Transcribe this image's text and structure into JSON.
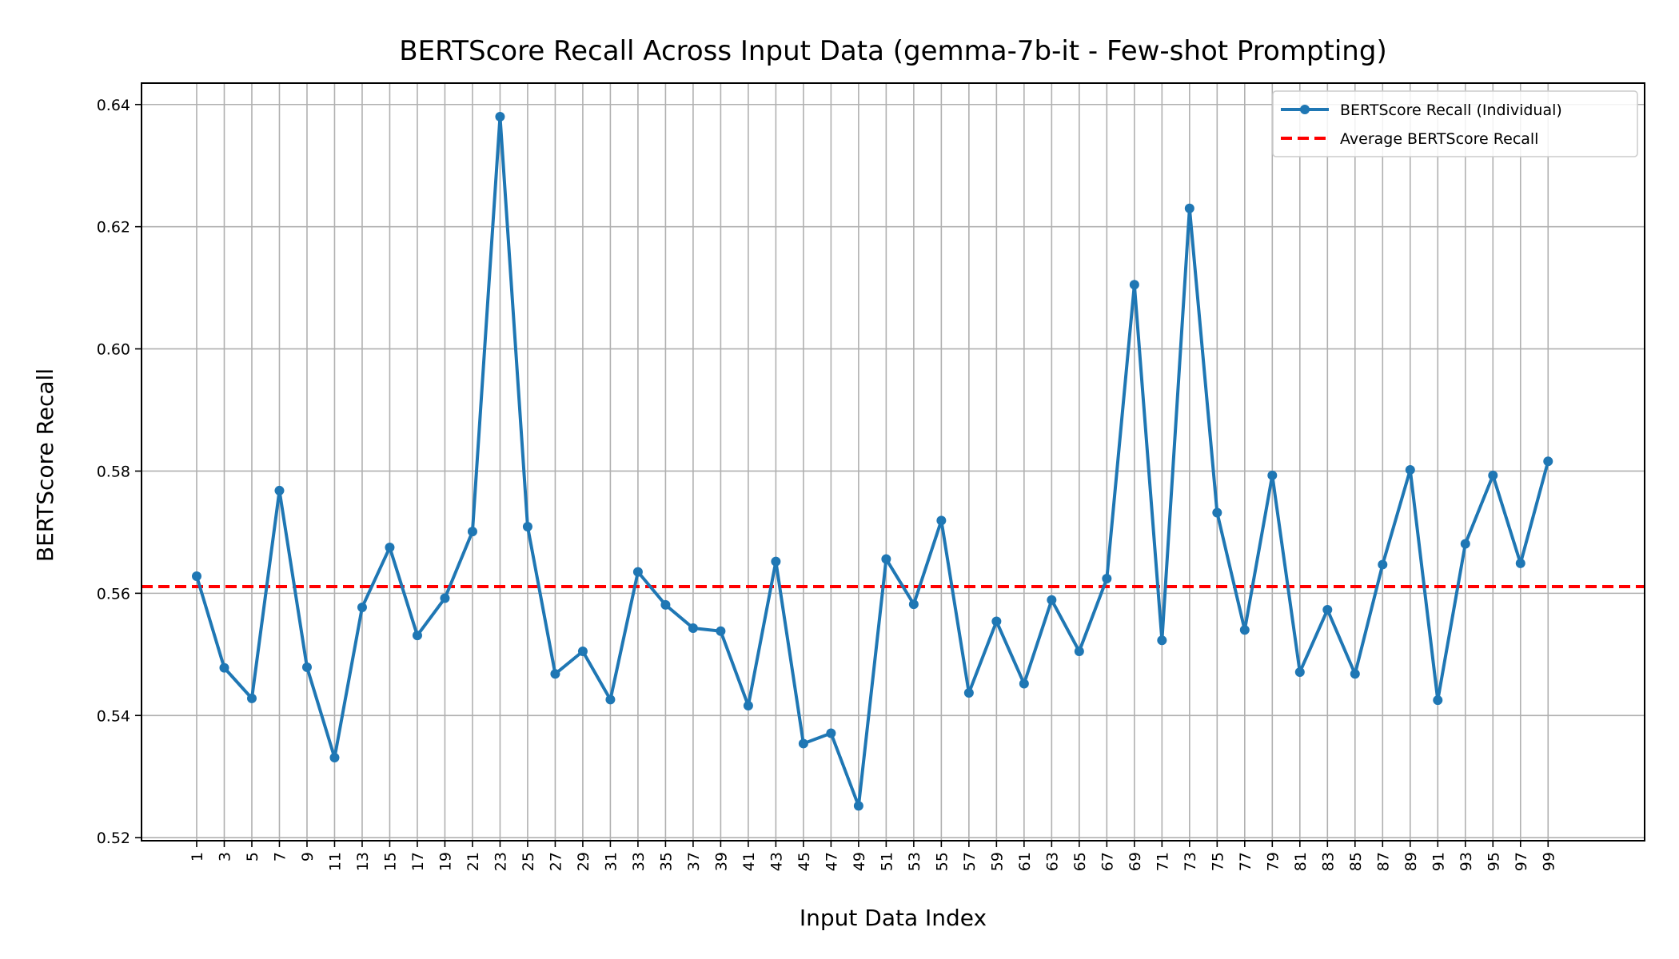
{
  "chart_data": {
    "type": "line",
    "title": "BERTScore Recall Across Input Data (gemma-7b-it - Few-shot Prompting)",
    "xlabel": "Input Data Index",
    "ylabel": "BERTScore Recall",
    "xlim": [
      -3,
      106
    ],
    "ylim": [
      0.5195,
      0.6435
    ],
    "yticks": [
      0.52,
      0.54,
      0.56,
      0.58,
      0.6,
      0.62,
      0.64
    ],
    "ytick_labels": [
      "0.52",
      "0.54",
      "0.56",
      "0.58",
      "0.60",
      "0.62",
      "0.64"
    ],
    "xticks": [
      1,
      3,
      5,
      7,
      9,
      11,
      13,
      15,
      17,
      19,
      21,
      23,
      25,
      27,
      29,
      31,
      33,
      35,
      37,
      39,
      41,
      43,
      45,
      47,
      49,
      51,
      53,
      55,
      57,
      59,
      61,
      63,
      65,
      67,
      69,
      71,
      73,
      75,
      77,
      79,
      81,
      83,
      85,
      87,
      89,
      91,
      93,
      95,
      97,
      99
    ],
    "grid": true,
    "legend_position": "top-right",
    "series": [
      {
        "name": "BERTScore Recall (Individual)",
        "style": "solid-with-markers",
        "color": "#1f77b4",
        "x": [
          1,
          3,
          5,
          7,
          9,
          11,
          13,
          15,
          17,
          19,
          21,
          23,
          25,
          27,
          29,
          31,
          33,
          35,
          37,
          39,
          41,
          43,
          45,
          47,
          49,
          51,
          53,
          55,
          57,
          59,
          61,
          63,
          65,
          67,
          69,
          71,
          73,
          75,
          77,
          79,
          81,
          83,
          85,
          87,
          89,
          91,
          93,
          95,
          97,
          99
        ],
        "values": [
          0.5628,
          0.5478,
          0.5428,
          0.5768,
          0.5479,
          0.5331,
          0.5577,
          0.5675,
          0.5531,
          0.5592,
          0.5701,
          0.638,
          0.5709,
          0.5468,
          0.5505,
          0.5426,
          0.5635,
          0.5581,
          0.5543,
          0.5538,
          0.5416,
          0.5652,
          0.5354,
          0.5371,
          0.5252,
          0.5656,
          0.5582,
          0.5719,
          0.5437,
          0.5554,
          0.5452,
          0.5589,
          0.5505,
          0.5624,
          0.6105,
          0.5523,
          0.623,
          0.5732,
          0.554,
          0.5793,
          0.5471,
          0.5573,
          0.5468,
          0.5647,
          0.5802,
          0.5425,
          0.5681,
          0.5793,
          0.5649,
          0.5816
        ]
      },
      {
        "name": "Average BERTScore Recall",
        "style": "dashed",
        "color": "#ff0000",
        "value": 0.5611
      }
    ]
  }
}
